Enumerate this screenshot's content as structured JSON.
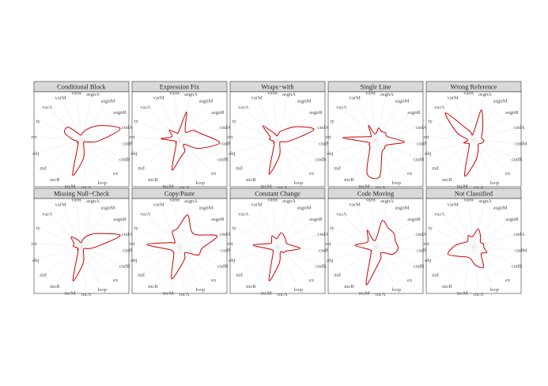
{
  "chart_data": {
    "type": "radar",
    "axes": [
      "varR",
      "asgnA",
      "asgnM",
      "asgnR",
      "cndA",
      "cndM",
      "cndR",
      "ex",
      "loop",
      "mcA",
      "mcM",
      "mcR",
      "md",
      "obj",
      "ret",
      "ty",
      "varA",
      "varM"
    ],
    "grid": false,
    "series_color": "#cc0000",
    "scale_max": 1.0,
    "panels": [
      {
        "title": "Conditional Block",
        "values": [
          0.12,
          0.2,
          0.35,
          0.6,
          0.98,
          0.4,
          0.1,
          0.08,
          0.12,
          0.45,
          0.88,
          0.15,
          0.12,
          0.1,
          0.22,
          0.45,
          0.45,
          0.18
        ]
      },
      {
        "title": "Expression Fix",
        "values": [
          0.2,
          0.7,
          0.25,
          0.4,
          0.55,
          0.98,
          0.5,
          0.15,
          0.3,
          0.4,
          0.75,
          0.15,
          0.12,
          0.1,
          0.45,
          0.2,
          0.35,
          0.2
        ]
      },
      {
        "title": "Wraps−with",
        "values": [
          0.1,
          0.2,
          0.3,
          0.55,
          0.92,
          0.3,
          0.1,
          0.08,
          0.12,
          0.4,
          0.85,
          0.15,
          0.12,
          0.1,
          0.2,
          0.2,
          0.5,
          0.18
        ]
      },
      {
        "title": "Single Line",
        "values": [
          0.15,
          0.3,
          0.25,
          0.3,
          0.3,
          0.7,
          0.3,
          0.3,
          0.35,
          0.9,
          0.85,
          0.25,
          0.2,
          0.2,
          0.8,
          0.2,
          0.15,
          0.4
        ]
      },
      {
        "title": "Wrong Reference",
        "values": [
          0.15,
          0.75,
          0.4,
          0.25,
          0.2,
          0.25,
          0.2,
          0.15,
          0.25,
          0.5,
          0.9,
          0.2,
          0.15,
          0.25,
          0.15,
          0.45,
          0.95,
          0.25
        ]
      },
      {
        "title": "Missing Null−Check",
        "values": [
          0.1,
          0.2,
          0.35,
          0.55,
          0.98,
          0.3,
          0.1,
          0.08,
          0.1,
          0.4,
          0.85,
          0.15,
          0.12,
          0.1,
          0.2,
          0.2,
          0.35,
          0.18
        ]
      },
      {
        "title": "Copy/Paste",
        "values": [
          0.45,
          0.8,
          0.5,
          0.5,
          0.95,
          0.55,
          0.5,
          0.2,
          0.3,
          0.45,
          0.8,
          0.25,
          0.2,
          0.25,
          0.8,
          0.25,
          0.15,
          0.4
        ]
      },
      {
        "title": "Constant Change",
        "values": [
          0.2,
          0.35,
          0.3,
          0.25,
          0.25,
          0.55,
          0.25,
          0.2,
          0.15,
          0.4,
          0.85,
          0.2,
          0.15,
          0.2,
          0.6,
          0.2,
          0.2,
          0.3
        ]
      },
      {
        "title": "Code Moving",
        "values": [
          0.15,
          0.65,
          0.55,
          0.55,
          0.5,
          0.55,
          0.45,
          0.2,
          0.3,
          0.45,
          0.95,
          0.2,
          0.15,
          0.2,
          0.5,
          0.25,
          0.25,
          0.45
        ]
      },
      {
        "title": "Not Classified",
        "values": [
          0.25,
          0.45,
          0.3,
          0.2,
          0.25,
          0.25,
          0.35,
          0.25,
          0.55,
          0.45,
          0.3,
          0.3,
          0.4,
          0.65,
          0.45,
          0.25,
          0.2,
          0.3
        ]
      }
    ]
  }
}
